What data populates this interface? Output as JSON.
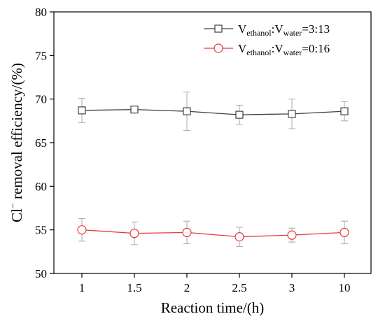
{
  "chart_data": {
    "type": "line",
    "x_categories": [
      "1",
      "1.5",
      "2",
      "2.5",
      "3",
      "10"
    ],
    "xlabel": "Reaction time/(h)",
    "ylabel": {
      "main": "Cl",
      "superscript": "−",
      "rest": " removal efficiency/(%)"
    },
    "ylim": [
      50,
      80
    ],
    "yticks": [
      "50",
      "55",
      "60",
      "65",
      "70",
      "75",
      "80"
    ],
    "ytick_values": [
      50,
      55,
      60,
      65,
      70,
      75,
      80
    ],
    "grid": false,
    "legend_position": "top-right",
    "series": [
      {
        "legend": {
          "v1": "V",
          "sub1": "ethanol",
          "colon": ":",
          "v2": "V",
          "sub2": "water",
          "ratio": "=3:13"
        },
        "color": "#404040",
        "marker": "square",
        "values": [
          68.7,
          68.8,
          68.6,
          68.2,
          68.3,
          68.6
        ],
        "errors": [
          1.4,
          0.3,
          2.2,
          1.1,
          1.7,
          1.1
        ]
      },
      {
        "legend": {
          "v1": "V",
          "sub1": "ethanol",
          "colon": ":",
          "v2": "V",
          "sub2": "water",
          "ratio": "=0:16"
        },
        "color": "#e8383d",
        "marker": "circle",
        "values": [
          55.0,
          54.6,
          54.7,
          54.2,
          54.4,
          54.7
        ],
        "errors": [
          1.3,
          1.3,
          1.3,
          1.1,
          0.8,
          1.3
        ]
      }
    ]
  }
}
